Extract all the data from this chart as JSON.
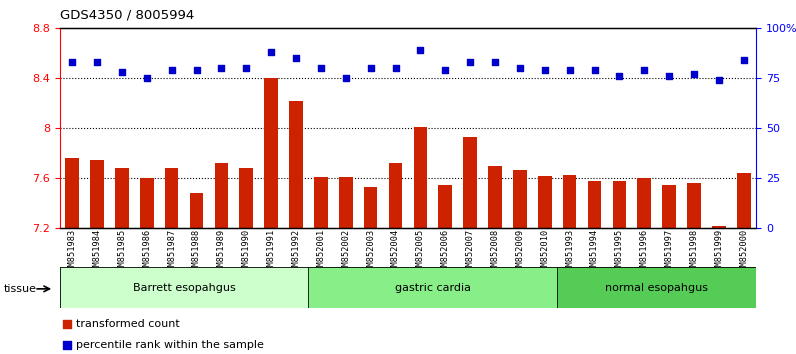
{
  "title": "GDS4350 / 8005994",
  "samples": [
    "GSM851983",
    "GSM851984",
    "GSM851985",
    "GSM851986",
    "GSM851987",
    "GSM851988",
    "GSM851989",
    "GSM851990",
    "GSM851991",
    "GSM851992",
    "GSM852001",
    "GSM852002",
    "GSM852003",
    "GSM852004",
    "GSM852005",
    "GSM852006",
    "GSM852007",
    "GSM852008",
    "GSM852009",
    "GSM852010",
    "GSM851993",
    "GSM851994",
    "GSM851995",
    "GSM851996",
    "GSM851997",
    "GSM851998",
    "GSM851999",
    "GSM852000"
  ],
  "bar_values": [
    7.76,
    7.75,
    7.68,
    7.6,
    7.68,
    7.48,
    7.72,
    7.68,
    8.4,
    8.22,
    7.61,
    7.61,
    7.53,
    7.72,
    8.01,
    7.55,
    7.93,
    7.7,
    7.67,
    7.62,
    7.63,
    7.58,
    7.58,
    7.6,
    7.55,
    7.56,
    7.22,
    7.64
  ],
  "percentile_values": [
    83,
    83,
    78,
    75,
    79,
    79,
    80,
    80,
    88,
    85,
    80,
    75,
    80,
    80,
    89,
    79,
    83,
    83,
    80,
    79,
    79,
    79,
    76,
    79,
    76,
    77,
    74,
    84
  ],
  "bar_color": "#cc2200",
  "percentile_color": "#0000cc",
  "ylim_left": [
    7.2,
    8.8
  ],
  "ylim_right": [
    0,
    100
  ],
  "yticks_left": [
    7.2,
    7.6,
    8.0,
    8.4,
    8.8
  ],
  "yticks_right": [
    0,
    25,
    50,
    75,
    100
  ],
  "ytick_labels_left": [
    "7.2",
    "7.6",
    "8",
    "8.4",
    "8.8"
  ],
  "ytick_labels_right": [
    "0",
    "25",
    "50",
    "75",
    "100%"
  ],
  "hlines": [
    7.6,
    8.0,
    8.4
  ],
  "groups": [
    {
      "label": "Barrett esopahgus",
      "start": 0,
      "end": 9,
      "color": "#ccffcc"
    },
    {
      "label": "gastric cardia",
      "start": 10,
      "end": 19,
      "color": "#88ee88"
    },
    {
      "label": "normal esopahgus",
      "start": 20,
      "end": 27,
      "color": "#55cc55"
    }
  ],
  "tissue_label": "tissue",
  "legend_bar_label": "transformed count",
  "legend_dot_label": "percentile rank within the sample",
  "background_color": "#ffffff",
  "bar_width": 0.55
}
